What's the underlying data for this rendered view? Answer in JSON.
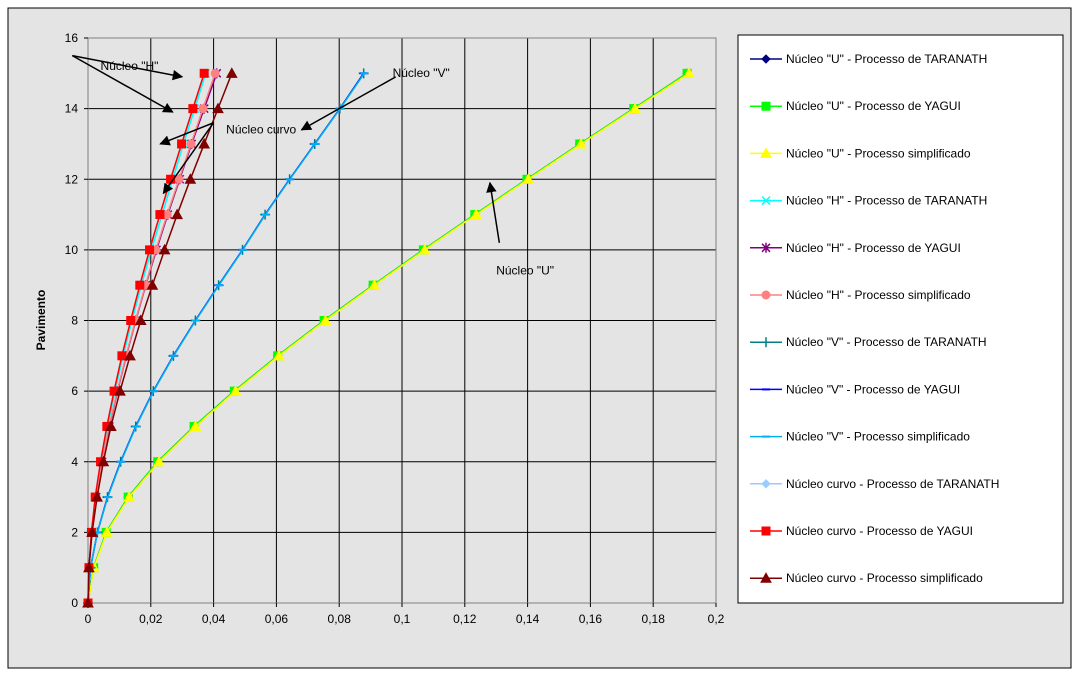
{
  "chart_data": {
    "type": "line",
    "title": "",
    "xlabel": "",
    "ylabel": "Pavimento",
    "xlim": [
      0,
      0.2
    ],
    "ylim": [
      0,
      16
    ],
    "grid": true,
    "legend_position": "right",
    "x_tick_labels": [
      "0",
      "0,02",
      "0,04",
      "0,06",
      "0,08",
      "0,1",
      "0,12",
      "0,14",
      "0,16",
      "0,18",
      "0,2"
    ],
    "y_tick_labels": [
      "0",
      "2",
      "4",
      "6",
      "8",
      "10",
      "12",
      "14",
      "16"
    ],
    "floors": [
      0,
      1,
      2,
      3,
      4,
      5,
      6,
      7,
      8,
      9,
      10,
      11,
      12,
      13,
      14,
      15
    ],
    "series": [
      {
        "name": "Núcleo \"U\" - Processo de TARANATH",
        "color": "#000080",
        "marker": "diamond",
        "x": [
          0,
          0.0018,
          0.0058,
          0.0128,
          0.0222,
          0.0338,
          0.0466,
          0.0604,
          0.0752,
          0.0908,
          0.1068,
          0.1232,
          0.1398,
          0.1566,
          0.1738,
          0.1908
        ]
      },
      {
        "name": "Núcleo \"U\" - Processo de YAGUI",
        "color": "#00ff00",
        "marker": "square",
        "x": [
          0,
          0.0018,
          0.0058,
          0.0128,
          0.0222,
          0.0338,
          0.0466,
          0.0604,
          0.0752,
          0.0908,
          0.1068,
          0.1232,
          0.1398,
          0.1566,
          0.1738,
          0.1908
        ]
      },
      {
        "name": "Núcleo \"U\" - Processo simplificado",
        "color": "#ffff00",
        "marker": "triangle",
        "x": [
          0,
          0.0019,
          0.006,
          0.0131,
          0.0226,
          0.0342,
          0.047,
          0.0608,
          0.0756,
          0.0912,
          0.1072,
          0.1236,
          0.1402,
          0.157,
          0.1742,
          0.1914
        ]
      },
      {
        "name": "Núcleo \"H\" - Processo de TARANATH",
        "color": "#00ffff",
        "marker": "x",
        "x": [
          0,
          0.0003,
          0.0011,
          0.0024,
          0.0041,
          0.0062,
          0.0086,
          0.0112,
          0.014,
          0.017,
          0.0202,
          0.0236,
          0.027,
          0.0304,
          0.034,
          0.0375
        ]
      },
      {
        "name": "Núcleo \"H\" - Processo de YAGUI",
        "color": "#800080",
        "marker": "star",
        "x": [
          0,
          0.0003,
          0.0012,
          0.0026,
          0.0045,
          0.0068,
          0.0094,
          0.0122,
          0.0152,
          0.0184,
          0.0218,
          0.0254,
          0.0292,
          0.033,
          0.037,
          0.041
        ]
      },
      {
        "name": "Núcleo \"H\" - Processo simplificado",
        "color": "#ff8080",
        "marker": "circle",
        "x": [
          0,
          0.0003,
          0.0012,
          0.0026,
          0.0045,
          0.0067,
          0.0093,
          0.0121,
          0.0151,
          0.0183,
          0.0216,
          0.0252,
          0.029,
          0.0328,
          0.0366,
          0.0405
        ]
      },
      {
        "name": "Núcleo \"V\" - Processo de TARANATH",
        "color": "#008080",
        "marker": "plus",
        "x": [
          0,
          0.0008,
          0.003,
          0.0062,
          0.0104,
          0.0152,
          0.0208,
          0.0272,
          0.0342,
          0.0416,
          0.0492,
          0.0564,
          0.0642,
          0.0722,
          0.0802,
          0.0878
        ]
      },
      {
        "name": "Núcleo \"V\" - Processo de YAGUI",
        "color": "#0000ff",
        "marker": "dash",
        "x": [
          0,
          0.0008,
          0.003,
          0.0062,
          0.0104,
          0.0152,
          0.0208,
          0.0272,
          0.0342,
          0.0416,
          0.0492,
          0.0564,
          0.0642,
          0.0722,
          0.0802,
          0.0878
        ]
      },
      {
        "name": "Núcleo \"V\" - Processo simplificado",
        "color": "#00b0f0",
        "marker": "dash",
        "x": [
          0,
          0.0008,
          0.003,
          0.0063,
          0.0105,
          0.0153,
          0.0209,
          0.0273,
          0.0343,
          0.0417,
          0.0493,
          0.0565,
          0.0643,
          0.0723,
          0.0803,
          0.088
        ]
      },
      {
        "name": "Núcleo curvo - Processo de TARANATH",
        "color": "#99ccff",
        "marker": "diamond",
        "x": [
          0,
          0.0003,
          0.0011,
          0.0023,
          0.004,
          0.006,
          0.0083,
          0.0108,
          0.0136,
          0.0165,
          0.0196,
          0.0229,
          0.0263,
          0.0298,
          0.0334,
          0.037
        ]
      },
      {
        "name": "Núcleo curvo - Processo de YAGUI",
        "color": "#ff0000",
        "marker": "square",
        "x": [
          0,
          0.0003,
          0.0011,
          0.0023,
          0.004,
          0.006,
          0.0083,
          0.0108,
          0.0136,
          0.0165,
          0.0196,
          0.0229,
          0.0263,
          0.0298,
          0.0334,
          0.037
        ]
      },
      {
        "name": "Núcleo curvo - Processo simplificado",
        "color": "#800000",
        "marker": "triangle",
        "x": [
          0,
          0.0003,
          0.0013,
          0.0029,
          0.0049,
          0.0073,
          0.0102,
          0.0134,
          0.0168,
          0.0205,
          0.0244,
          0.0284,
          0.0326,
          0.037,
          0.0414,
          0.0458
        ]
      }
    ],
    "annotations": [
      {
        "text": "Núcleo \"H\"",
        "at": [
          0.004,
          15.1
        ]
      },
      {
        "text": "Núcleo curvo",
        "at": [
          0.044,
          13.3
        ]
      },
      {
        "text": "Núcleo \"V\"",
        "at": [
          0.097,
          14.9
        ]
      },
      {
        "text": "Núcleo \"U\"",
        "at": [
          0.13,
          9.3
        ]
      }
    ]
  }
}
